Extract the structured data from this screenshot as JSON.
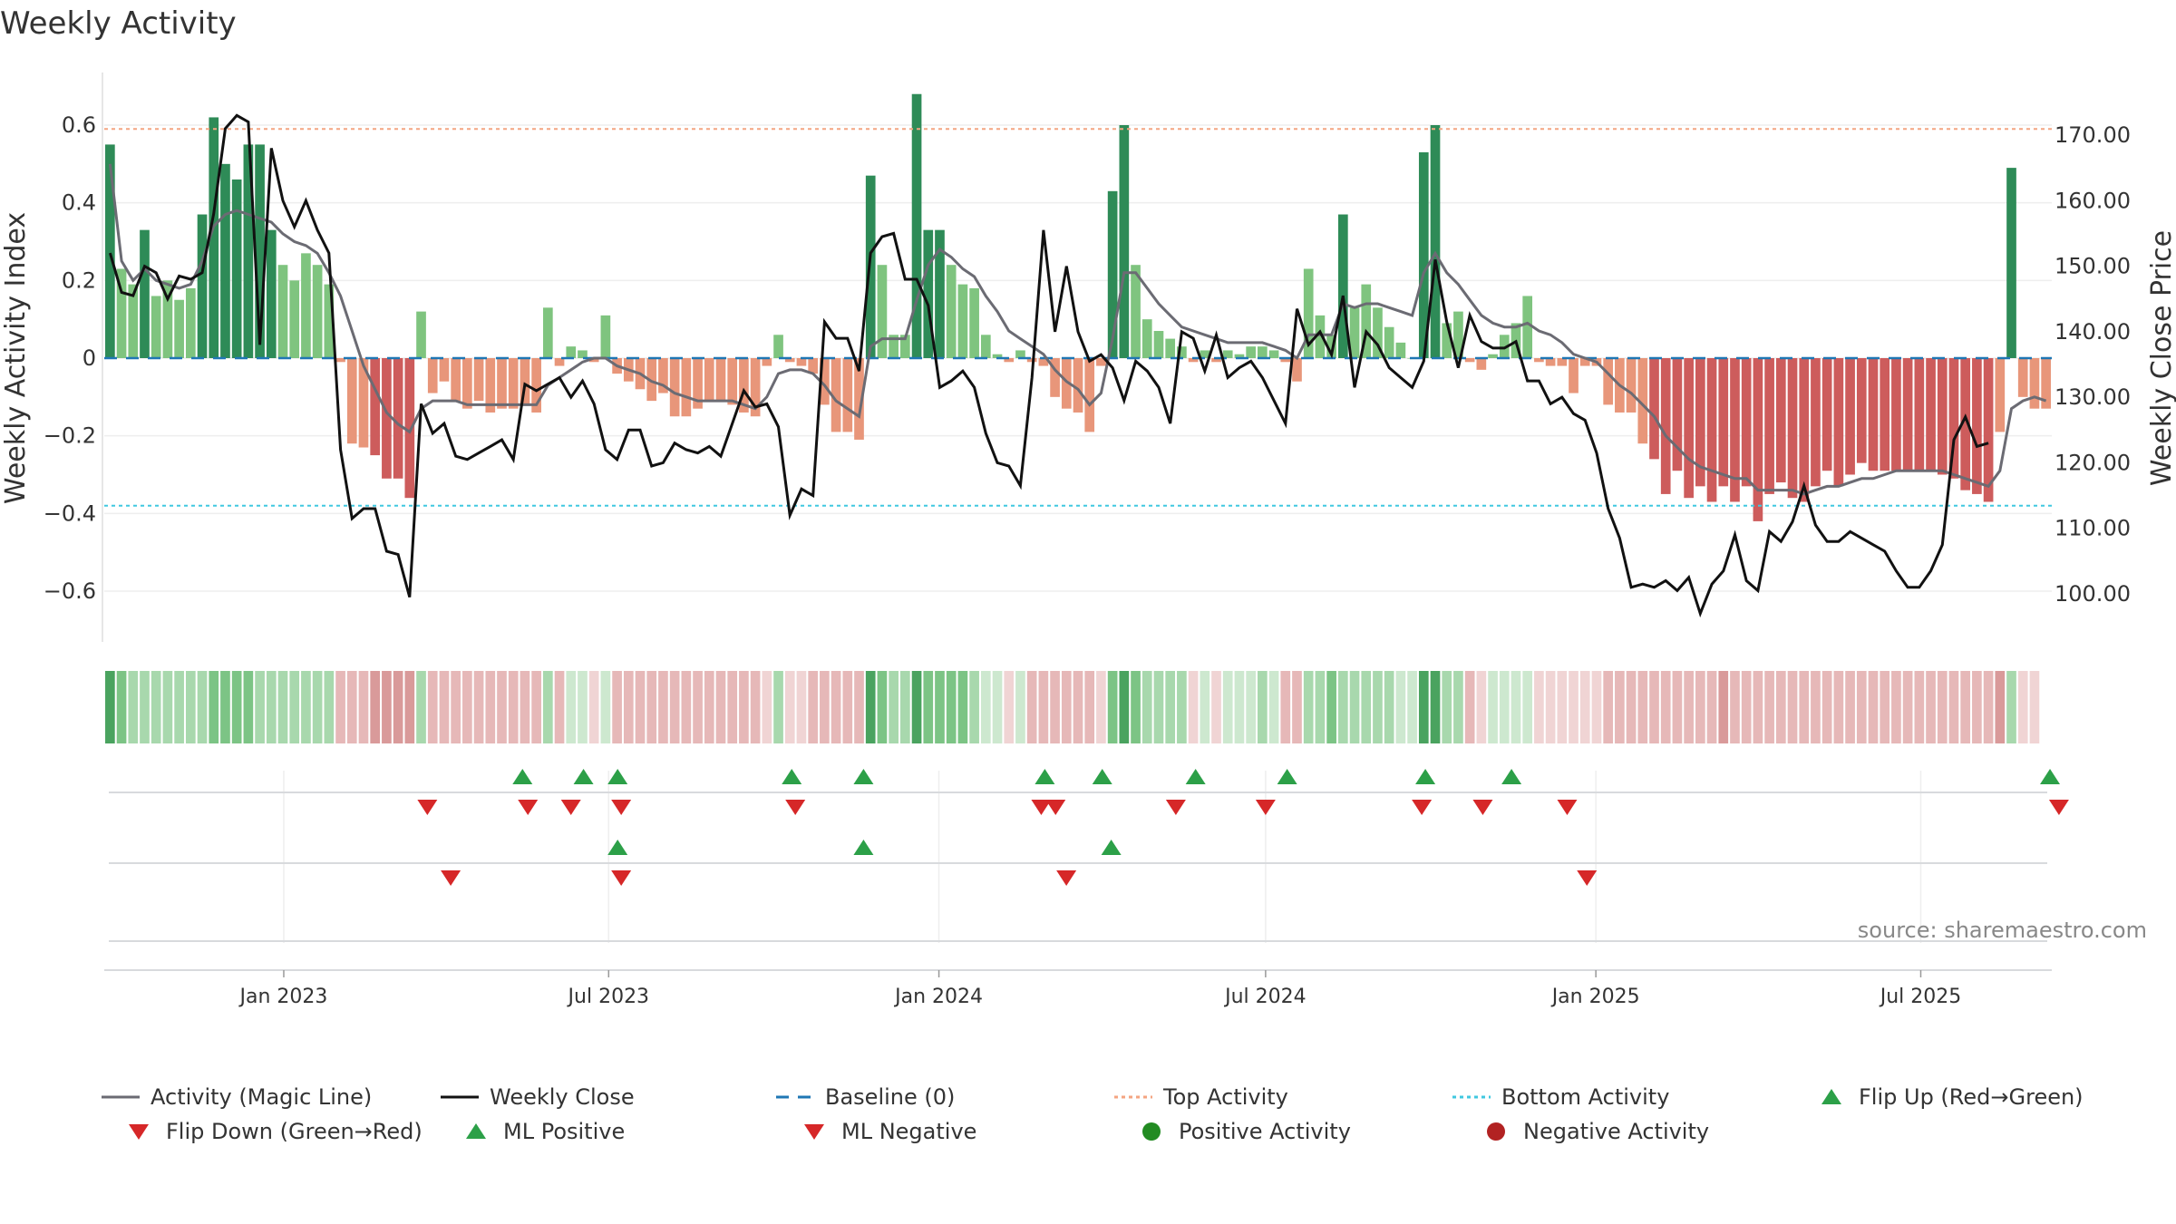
{
  "title": "Weekly Activity",
  "source": "source: sharemaestro.com",
  "colors": {
    "green_strong": "#2e8b57",
    "green_light": "#7fc47f",
    "red_strong": "#cd5c5c",
    "red_light": "#e8967a",
    "magic_line": "#6b6b73",
    "close": "#111111",
    "baseline": "#1f77b4",
    "top": "#f4a582",
    "bottom": "#40c8e0",
    "flip_up": "#2ca048",
    "flip_down": "#d62728"
  },
  "chart_data": {
    "type": "bar",
    "title": "Weekly Activity",
    "ylabel": "Weekly Activity Index",
    "y2label": "Weekly Close Price",
    "ylim": [
      -0.74,
      0.74
    ],
    "y2lim": [
      92,
      178
    ],
    "yticks": [
      "0.6",
      "0.4",
      "0.2",
      "0",
      "−0.2",
      "−0.4",
      "−0.6"
    ],
    "ytick_values": [
      0.6,
      0.4,
      0.2,
      0,
      -0.2,
      -0.4,
      -0.6
    ],
    "y2ticks": [
      "170.00",
      "160.00",
      "150.00",
      "140.00",
      "130.00",
      "120.00",
      "110.00",
      "100.00"
    ],
    "y2tick_values": [
      170,
      160,
      150,
      140,
      130,
      120,
      110,
      100
    ],
    "x_start": "2022-09-23",
    "x_end": "2025-09-12",
    "xticks": [
      "Jan 2023",
      "Jul 2023",
      "Jan 2024",
      "Jul 2024",
      "Jan 2025",
      "Jul 2025"
    ],
    "xtick_dates": [
      "2023-01-01",
      "2023-07-01",
      "2024-01-01",
      "2024-07-01",
      "2025-01-01",
      "2025-07-01"
    ],
    "top_activity": 0.59,
    "bottom_activity": -0.38,
    "baseline": 0,
    "activity": [
      0.55,
      0.23,
      0.19,
      0.33,
      0.16,
      0.2,
      0.15,
      0.18,
      0.37,
      0.62,
      0.5,
      0.46,
      0.55,
      0.55,
      0.33,
      0.24,
      0.2,
      0.27,
      0.24,
      0.19,
      -0.01,
      -0.22,
      -0.23,
      -0.25,
      -0.31,
      -0.31,
      -0.36,
      0.12,
      -0.09,
      -0.06,
      -0.11,
      -0.13,
      -0.11,
      -0.14,
      -0.13,
      -0.13,
      -0.12,
      -0.14,
      0.13,
      -0.02,
      0.03,
      0.02,
      -0.01,
      0.11,
      -0.04,
      -0.06,
      -0.08,
      -0.11,
      -0.09,
      -0.15,
      -0.15,
      -0.13,
      -0.11,
      -0.11,
      -0.12,
      -0.14,
      -0.15,
      -0.02,
      0.06,
      -0.01,
      -0.02,
      -0.04,
      -0.12,
      -0.19,
      -0.19,
      -0.21,
      0.47,
      0.24,
      0.06,
      0.06,
      0.68,
      0.33,
      0.33,
      0.24,
      0.19,
      0.18,
      0.06,
      0.01,
      -0.01,
      0.02,
      -0.01,
      -0.02,
      -0.1,
      -0.13,
      -0.14,
      -0.19,
      -0.02,
      0.43,
      0.6,
      0.24,
      0.1,
      0.07,
      0.05,
      0.03,
      -0.01,
      0.02,
      -0.01,
      0.02,
      0.01,
      0.03,
      0.03,
      0.02,
      -0.01,
      -0.06,
      0.23,
      0.11,
      0.06,
      0.37,
      0.13,
      0.19,
      0.13,
      0.08,
      0.04,
      0.0,
      0.53,
      0.6,
      0.09,
      0.12,
      -0.01,
      -0.03,
      0.01,
      0.06,
      0.09,
      0.16,
      -0.01,
      -0.02,
      -0.02,
      -0.09,
      -0.02,
      -0.02,
      -0.12,
      -0.14,
      -0.14,
      -0.22,
      -0.26,
      -0.35,
      -0.29,
      -0.36,
      -0.33,
      -0.37,
      -0.33,
      -0.37,
      -0.33,
      -0.42,
      -0.35,
      -0.32,
      -0.36,
      -0.37,
      -0.33,
      -0.29,
      -0.33,
      -0.3,
      -0.27,
      -0.29,
      -0.29,
      -0.29,
      -0.29,
      -0.29,
      -0.29,
      -0.3,
      -0.31,
      -0.34,
      -0.35,
      -0.37,
      -0.19,
      0.49,
      -0.1,
      -0.13,
      -0.13
    ],
    "magic_line": [
      0.5,
      0.25,
      0.2,
      0.23,
      0.2,
      0.19,
      0.18,
      0.19,
      0.25,
      0.34,
      0.37,
      0.38,
      0.37,
      0.36,
      0.35,
      0.32,
      0.3,
      0.29,
      0.27,
      0.22,
      0.16,
      0.07,
      -0.02,
      -0.08,
      -0.14,
      -0.17,
      -0.19,
      -0.13,
      -0.11,
      -0.11,
      -0.11,
      -0.12,
      -0.12,
      -0.12,
      -0.12,
      -0.12,
      -0.12,
      -0.12,
      -0.07,
      -0.05,
      -0.03,
      -0.01,
      0.0,
      0.0,
      -0.02,
      -0.03,
      -0.04,
      -0.06,
      -0.07,
      -0.09,
      -0.1,
      -0.11,
      -0.11,
      -0.11,
      -0.11,
      -0.12,
      -0.13,
      -0.1,
      -0.04,
      -0.03,
      -0.03,
      -0.04,
      -0.07,
      -0.11,
      -0.13,
      -0.15,
      0.03,
      0.05,
      0.05,
      0.05,
      0.15,
      0.24,
      0.28,
      0.26,
      0.23,
      0.21,
      0.16,
      0.12,
      0.07,
      0.05,
      0.03,
      0.01,
      -0.03,
      -0.06,
      -0.08,
      -0.12,
      -0.09,
      0.05,
      0.22,
      0.22,
      0.18,
      0.14,
      0.11,
      0.08,
      0.07,
      0.06,
      0.05,
      0.04,
      0.04,
      0.04,
      0.04,
      0.03,
      0.02,
      0.0,
      0.06,
      0.06,
      0.06,
      0.14,
      0.13,
      0.14,
      0.14,
      0.13,
      0.12,
      0.11,
      0.22,
      0.27,
      0.22,
      0.19,
      0.15,
      0.11,
      0.09,
      0.08,
      0.08,
      0.09,
      0.07,
      0.06,
      0.04,
      0.01,
      0.0,
      -0.01,
      -0.04,
      -0.07,
      -0.09,
      -0.12,
      -0.15,
      -0.2,
      -0.23,
      -0.26,
      -0.28,
      -0.29,
      -0.3,
      -0.31,
      -0.31,
      -0.34,
      -0.34,
      -0.34,
      -0.34,
      -0.35,
      -0.34,
      -0.33,
      -0.33,
      -0.32,
      -0.31,
      -0.31,
      -0.3,
      -0.29,
      -0.29,
      -0.29,
      -0.29,
      -0.29,
      -0.3,
      -0.31,
      -0.32,
      -0.33,
      -0.29,
      -0.13,
      -0.11,
      -0.1,
      -0.11
    ],
    "weekly_close": [
      152.0,
      146.0,
      145.5,
      150.0,
      149.0,
      145.0,
      148.5,
      148.0,
      149.0,
      158.0,
      171.0,
      173.0,
      172.0,
      138.0,
      168.0,
      160.0,
      156.0,
      160.0,
      155.5,
      152.0,
      122.0,
      111.5,
      113.0,
      113.0,
      106.5,
      106.0,
      99.5,
      129.0,
      124.5,
      126.0,
      121.0,
      120.5,
      121.5,
      122.5,
      123.5,
      120.5,
      132.0,
      131.0,
      132.0,
      133.0,
      130.0,
      132.5,
      129.0,
      122.0,
      120.5,
      125.0,
      125.0,
      119.5,
      120.0,
      123.0,
      122.0,
      121.5,
      122.5,
      121.0,
      126.0,
      131.0,
      128.5,
      129.0,
      125.5,
      112.0,
      116.0,
      115.0,
      141.5,
      139.0,
      139.0,
      134.0,
      152.0,
      154.5,
      155.0,
      148.0,
      148.0,
      144.0,
      131.5,
      132.5,
      134.0,
      131.5,
      124.5,
      120.0,
      119.5,
      116.5,
      133.0,
      155.5,
      140.0,
      150.0,
      140.0,
      135.5,
      136.5,
      134.5,
      129.5,
      135.5,
      134.0,
      131.5,
      126.0,
      140.0,
      139.0,
      134.0,
      139.5,
      133.0,
      134.5,
      135.5,
      133.0,
      129.5,
      126.0,
      143.5,
      138.0,
      140.0,
      136.5,
      145.5,
      131.5,
      140.0,
      138.0,
      134.5,
      133.0,
      131.5,
      135.5,
      151.0,
      141.5,
      134.5,
      142.5,
      138.5,
      137.5,
      137.5,
      138.5,
      132.5,
      132.5,
      129.0,
      130.0,
      127.5,
      126.5,
      121.5,
      113.0,
      108.5,
      101.0,
      101.5,
      101.0,
      102.0,
      100.5,
      102.5,
      97.0,
      101.5,
      103.5,
      109.0,
      102.0,
      100.5,
      109.5,
      108.0,
      111.0,
      116.5,
      110.5,
      108.0,
      108.0,
      109.5,
      108.5,
      107.5,
      106.5,
      103.5,
      101.0,
      101.0,
      103.5,
      107.5,
      123.5,
      127.0,
      122.5,
      123.0
    ],
    "strip_intensity": [
      3,
      2,
      1,
      1,
      1,
      1,
      1,
      1,
      1,
      2,
      2,
      2,
      2,
      1,
      1,
      1,
      1,
      1,
      1,
      1,
      1,
      1,
      1,
      2,
      2,
      2,
      2,
      1,
      1,
      1,
      1,
      1,
      1,
      1,
      1,
      1,
      1,
      1,
      1,
      1,
      0,
      0,
      0,
      0,
      1,
      1,
      1,
      1,
      1,
      1,
      1,
      1,
      1,
      1,
      1,
      1,
      1,
      0,
      1,
      0,
      0,
      1,
      1,
      1,
      1,
      1,
      3,
      2,
      1,
      1,
      3,
      2,
      2,
      2,
      2,
      1,
      0,
      0,
      0,
      0,
      1,
      1,
      1,
      1,
      1,
      1,
      0,
      2,
      3,
      2,
      1,
      1,
      1,
      1,
      0,
      0,
      0,
      0,
      0,
      0,
      1,
      0,
      1,
      1,
      1,
      1,
      2,
      1,
      1,
      1,
      1,
      1,
      0,
      0,
      3,
      3,
      1,
      1,
      1,
      0,
      0,
      0,
      0,
      0,
      0,
      0,
      0,
      0,
      0,
      0,
      1,
      1,
      1,
      1,
      1,
      1,
      1,
      1,
      1,
      1,
      2,
      1,
      1,
      1,
      1,
      1,
      1,
      1,
      1,
      1,
      1,
      1,
      1,
      1,
      1,
      1,
      1,
      1,
      1,
      1,
      1,
      1,
      1,
      1,
      2,
      1,
      0,
      0
    ],
    "flip_up_dates": [
      "2023-05-14",
      "2023-06-17",
      "2023-07-06",
      "2023-10-11",
      "2023-11-20",
      "2024-02-29",
      "2024-04-01",
      "2024-05-23",
      "2024-07-13",
      "2024-09-28",
      "2024-11-15",
      "2025-09-11"
    ],
    "flip_down_dates": [
      "2023-03-22",
      "2023-05-17",
      "2023-06-10",
      "2023-07-08",
      "2023-10-13",
      "2024-02-27",
      "2024-03-06",
      "2024-05-12",
      "2024-07-01",
      "2024-09-26",
      "2024-10-30",
      "2024-12-16",
      "2025-09-16"
    ],
    "ml_positive_dates": [
      "2023-07-06",
      "2023-11-20",
      "2024-04-06"
    ],
    "ml_negative_dates": [
      "2023-04-04",
      "2023-07-08",
      "2024-03-12",
      "2024-12-27"
    ],
    "legend": [
      {
        "label": "Activity (Magic Line)",
        "kind": "line-grey"
      },
      {
        "label": "Weekly Close",
        "kind": "line-black"
      },
      {
        "label": "Baseline (0)",
        "kind": "dash-blue"
      },
      {
        "label": "Top Activity",
        "kind": "dot-orange"
      },
      {
        "label": "Bottom Activity",
        "kind": "dot-cyan"
      },
      {
        "label": "Flip Up (Red→Green)",
        "kind": "tri-up-green"
      },
      {
        "label": "Flip Down (Green→Red)",
        "kind": "tri-down-red"
      },
      {
        "label": "ML Positive",
        "kind": "tri-up-green"
      },
      {
        "label": "ML Negative",
        "kind": "tri-down-red"
      },
      {
        "label": "Positive Activity",
        "kind": "circle-green"
      },
      {
        "label": "Negative Activity",
        "kind": "circle-red"
      }
    ]
  }
}
